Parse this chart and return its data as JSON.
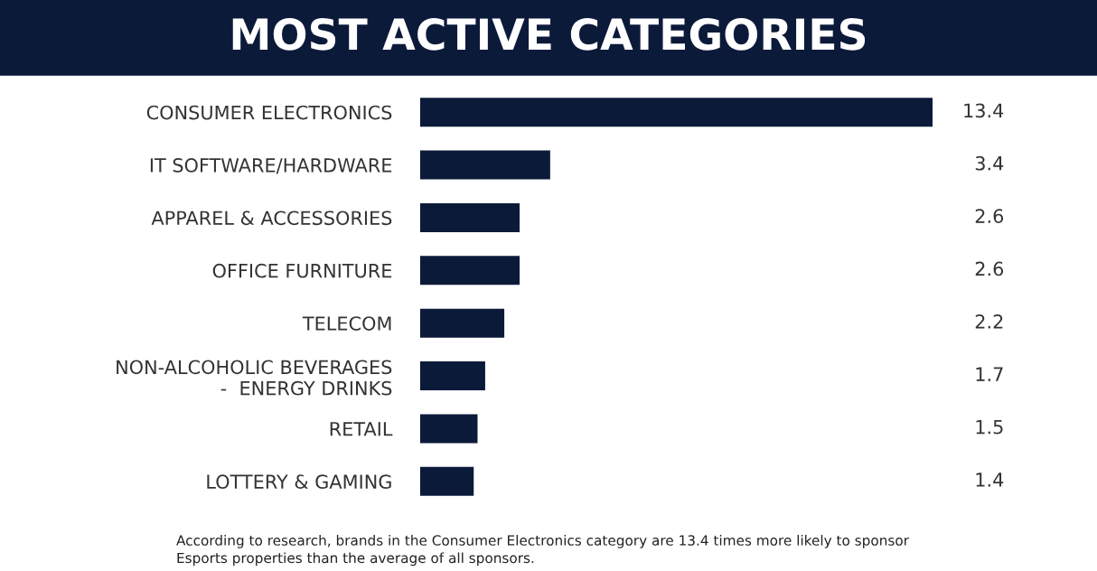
{
  "chart_data": {
    "type": "bar",
    "orientation": "horizontal",
    "title": "MOST ACTIVE CATEGORIES",
    "categories": [
      "CONSUMER ELECTRONICS",
      "IT SOFTWARE/HARDWARE",
      "APPAREL & ACCESSORIES",
      "OFFICE FURNITURE",
      "TELECOM",
      "NON-ALCOHOLIC BEVERAGES\n -  ENERGY DRINKS",
      "RETAIL",
      "LOTTERY & GAMING"
    ],
    "values": [
      13.4,
      3.4,
      2.6,
      2.6,
      2.2,
      1.7,
      1.5,
      1.4
    ],
    "color": "#0c1a3a",
    "data_labels": true,
    "grid": false,
    "legend": false,
    "annotations": [
      "According to research, brands in the Consumer Electronics category are 13.4 times more likely to sponsor\nEsports properties than the average of all sponsors."
    ]
  }
}
